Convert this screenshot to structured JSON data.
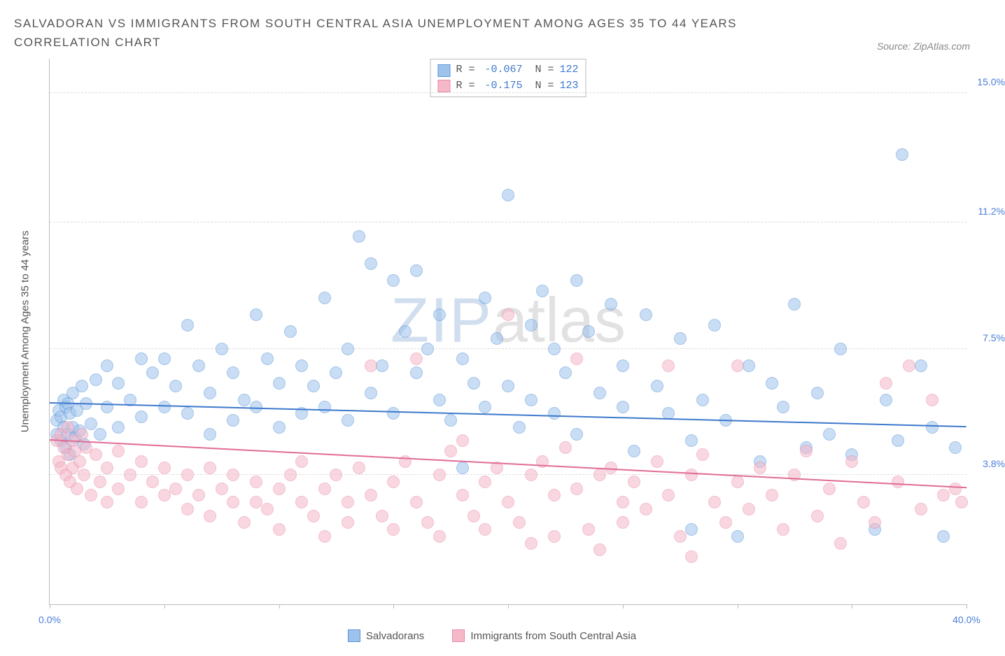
{
  "title": "SALVADORAN VS IMMIGRANTS FROM SOUTH CENTRAL ASIA UNEMPLOYMENT AMONG AGES 35 TO 44 YEARS CORRELATION CHART",
  "source": "Source: ZipAtlas.com",
  "ylabel": "Unemployment Among Ages 35 to 44 years",
  "watermark_zip": "ZIP",
  "watermark_atlas": "atlas",
  "chart": {
    "type": "scatter",
    "xlim": [
      0,
      40
    ],
    "ylim": [
      0,
      16
    ],
    "xtick_positions": [
      0,
      5,
      10,
      15,
      20,
      25,
      30,
      35,
      40
    ],
    "xtick_labels": {
      "0": "0.0%",
      "40": "40.0%"
    },
    "xtick_label_color": "#4a7fd8",
    "ytick_positions": [
      3.8,
      7.5,
      11.2,
      15.0
    ],
    "ytick_labels": [
      "3.8%",
      "7.5%",
      "11.2%",
      "15.0%"
    ],
    "ytick_label_color": "#4a7fd8",
    "grid_color": "#dddddd",
    "background_color": "#ffffff",
    "marker_radius": 9,
    "marker_opacity": 0.55,
    "series": [
      {
        "name": "Salvadorans",
        "color_fill": "#9dc3ed",
        "color_stroke": "#5b94d6",
        "trend_color": "#3d79cc",
        "R": "-0.067",
        "N": "122",
        "trend": {
          "y_at_x0": 5.9,
          "y_at_xmax": 5.2
        },
        "points": [
          [
            0.3,
            5.0
          ],
          [
            0.3,
            5.4
          ],
          [
            0.4,
            5.7
          ],
          [
            0.5,
            4.8
          ],
          [
            0.5,
            5.5
          ],
          [
            0.6,
            5.2
          ],
          [
            0.6,
            6.0
          ],
          [
            0.7,
            4.6
          ],
          [
            0.7,
            5.8
          ],
          [
            0.8,
            5.0
          ],
          [
            0.8,
            5.9
          ],
          [
            0.9,
            4.4
          ],
          [
            0.9,
            5.6
          ],
          [
            1.0,
            5.2
          ],
          [
            1.0,
            6.2
          ],
          [
            1.1,
            4.9
          ],
          [
            1.2,
            5.7
          ],
          [
            1.3,
            5.1
          ],
          [
            1.4,
            6.4
          ],
          [
            1.5,
            4.7
          ],
          [
            1.6,
            5.9
          ],
          [
            1.8,
            5.3
          ],
          [
            2.0,
            6.6
          ],
          [
            2.2,
            5.0
          ],
          [
            2.5,
            5.8
          ],
          [
            2.5,
            7.0
          ],
          [
            3.0,
            6.5
          ],
          [
            3.0,
            5.2
          ],
          [
            3.5,
            6.0
          ],
          [
            4.0,
            7.2
          ],
          [
            4.0,
            5.5
          ],
          [
            4.5,
            6.8
          ],
          [
            5.0,
            7.2
          ],
          [
            5.0,
            5.8
          ],
          [
            5.5,
            6.4
          ],
          [
            6.0,
            8.2
          ],
          [
            6.0,
            5.6
          ],
          [
            6.5,
            7.0
          ],
          [
            7.0,
            6.2
          ],
          [
            7.0,
            5.0
          ],
          [
            7.5,
            7.5
          ],
          [
            8.0,
            6.8
          ],
          [
            8.0,
            5.4
          ],
          [
            8.5,
            6.0
          ],
          [
            9.0,
            8.5
          ],
          [
            9.0,
            5.8
          ],
          [
            9.5,
            7.2
          ],
          [
            10.0,
            6.5
          ],
          [
            10.0,
            5.2
          ],
          [
            10.5,
            8.0
          ],
          [
            11.0,
            7.0
          ],
          [
            11.0,
            5.6
          ],
          [
            11.5,
            6.4
          ],
          [
            12.0,
            9.0
          ],
          [
            12.0,
            5.8
          ],
          [
            12.5,
            6.8
          ],
          [
            13.0,
            7.5
          ],
          [
            13.0,
            5.4
          ],
          [
            13.5,
            10.8
          ],
          [
            14.0,
            6.2
          ],
          [
            14.0,
            10.0
          ],
          [
            14.5,
            7.0
          ],
          [
            15.0,
            9.5
          ],
          [
            15.0,
            5.6
          ],
          [
            15.5,
            8.0
          ],
          [
            16.0,
            6.8
          ],
          [
            16.0,
            9.8
          ],
          [
            16.5,
            7.5
          ],
          [
            17.0,
            6.0
          ],
          [
            17.0,
            8.5
          ],
          [
            17.5,
            5.4
          ],
          [
            18.0,
            7.2
          ],
          [
            18.0,
            4.0
          ],
          [
            18.5,
            6.5
          ],
          [
            19.0,
            9.0
          ],
          [
            19.0,
            5.8
          ],
          [
            19.5,
            7.8
          ],
          [
            20.0,
            12.0
          ],
          [
            20.0,
            6.4
          ],
          [
            20.5,
            5.2
          ],
          [
            21.0,
            8.2
          ],
          [
            21.0,
            6.0
          ],
          [
            21.5,
            9.2
          ],
          [
            22.0,
            5.6
          ],
          [
            22.0,
            7.5
          ],
          [
            22.5,
            6.8
          ],
          [
            23.0,
            9.5
          ],
          [
            23.0,
            5.0
          ],
          [
            23.5,
            8.0
          ],
          [
            24.0,
            6.2
          ],
          [
            24.5,
            8.8
          ],
          [
            25.0,
            5.8
          ],
          [
            25.0,
            7.0
          ],
          [
            25.5,
            4.5
          ],
          [
            26.0,
            8.5
          ],
          [
            26.5,
            6.4
          ],
          [
            27.0,
            5.6
          ],
          [
            27.5,
            7.8
          ],
          [
            28.0,
            4.8
          ],
          [
            28.0,
            2.2
          ],
          [
            28.5,
            6.0
          ],
          [
            29.0,
            8.2
          ],
          [
            29.5,
            5.4
          ],
          [
            30.0,
            2.0
          ],
          [
            30.5,
            7.0
          ],
          [
            31.0,
            4.2
          ],
          [
            31.5,
            6.5
          ],
          [
            32.0,
            5.8
          ],
          [
            32.5,
            8.8
          ],
          [
            33.0,
            4.6
          ],
          [
            33.5,
            6.2
          ],
          [
            34.0,
            5.0
          ],
          [
            34.5,
            7.5
          ],
          [
            35.0,
            4.4
          ],
          [
            36.0,
            2.2
          ],
          [
            36.5,
            6.0
          ],
          [
            37.0,
            4.8
          ],
          [
            37.2,
            13.2
          ],
          [
            38.0,
            7.0
          ],
          [
            38.5,
            5.2
          ],
          [
            39.0,
            2.0
          ],
          [
            39.5,
            4.6
          ]
        ]
      },
      {
        "name": "Immigrants from South Central Asia",
        "color_fill": "#f5b8c8",
        "color_stroke": "#e88ba8",
        "trend_color": "#e06c95",
        "R": "-0.175",
        "N": "123",
        "trend": {
          "y_at_x0": 4.8,
          "y_at_xmax": 3.4
        },
        "points": [
          [
            0.3,
            4.8
          ],
          [
            0.4,
            4.2
          ],
          [
            0.5,
            5.0
          ],
          [
            0.5,
            4.0
          ],
          [
            0.6,
            4.6
          ],
          [
            0.7,
            3.8
          ],
          [
            0.8,
            4.4
          ],
          [
            0.8,
            5.2
          ],
          [
            0.9,
            3.6
          ],
          [
            1.0,
            4.8
          ],
          [
            1.0,
            4.0
          ],
          [
            1.1,
            4.5
          ],
          [
            1.2,
            3.4
          ],
          [
            1.3,
            4.2
          ],
          [
            1.4,
            5.0
          ],
          [
            1.5,
            3.8
          ],
          [
            1.6,
            4.6
          ],
          [
            1.8,
            3.2
          ],
          [
            2.0,
            4.4
          ],
          [
            2.2,
            3.6
          ],
          [
            2.5,
            4.0
          ],
          [
            2.5,
            3.0
          ],
          [
            3.0,
            4.5
          ],
          [
            3.0,
            3.4
          ],
          [
            3.5,
            3.8
          ],
          [
            4.0,
            3.0
          ],
          [
            4.0,
            4.2
          ],
          [
            4.5,
            3.6
          ],
          [
            5.0,
            3.2
          ],
          [
            5.0,
            4.0
          ],
          [
            5.5,
            3.4
          ],
          [
            6.0,
            2.8
          ],
          [
            6.0,
            3.8
          ],
          [
            6.5,
            3.2
          ],
          [
            7.0,
            2.6
          ],
          [
            7.0,
            4.0
          ],
          [
            7.5,
            3.4
          ],
          [
            8.0,
            3.0
          ],
          [
            8.0,
            3.8
          ],
          [
            8.5,
            2.4
          ],
          [
            9.0,
            3.6
          ],
          [
            9.0,
            3.0
          ],
          [
            9.5,
            2.8
          ],
          [
            10.0,
            3.4
          ],
          [
            10.0,
            2.2
          ],
          [
            10.5,
            3.8
          ],
          [
            11.0,
            3.0
          ],
          [
            11.0,
            4.2
          ],
          [
            11.5,
            2.6
          ],
          [
            12.0,
            3.4
          ],
          [
            12.0,
            2.0
          ],
          [
            12.5,
            3.8
          ],
          [
            13.0,
            3.0
          ],
          [
            13.0,
            2.4
          ],
          [
            13.5,
            4.0
          ],
          [
            14.0,
            3.2
          ],
          [
            14.0,
            7.0
          ],
          [
            14.5,
            2.6
          ],
          [
            15.0,
            3.6
          ],
          [
            15.0,
            2.2
          ],
          [
            15.5,
            4.2
          ],
          [
            16.0,
            3.0
          ],
          [
            16.0,
            7.2
          ],
          [
            16.5,
            2.4
          ],
          [
            17.0,
            3.8
          ],
          [
            17.0,
            2.0
          ],
          [
            17.5,
            4.5
          ],
          [
            18.0,
            3.2
          ],
          [
            18.0,
            4.8
          ],
          [
            18.5,
            2.6
          ],
          [
            19.0,
            3.6
          ],
          [
            19.0,
            2.2
          ],
          [
            19.5,
            4.0
          ],
          [
            20.0,
            3.0
          ],
          [
            20.0,
            8.5
          ],
          [
            20.5,
            2.4
          ],
          [
            21.0,
            3.8
          ],
          [
            21.0,
            1.8
          ],
          [
            21.5,
            4.2
          ],
          [
            22.0,
            3.2
          ],
          [
            22.0,
            2.0
          ],
          [
            22.5,
            4.6
          ],
          [
            23.0,
            3.4
          ],
          [
            23.0,
            7.2
          ],
          [
            23.5,
            2.2
          ],
          [
            24.0,
            3.8
          ],
          [
            24.0,
            1.6
          ],
          [
            24.5,
            4.0
          ],
          [
            25.0,
            3.0
          ],
          [
            25.0,
            2.4
          ],
          [
            25.5,
            3.6
          ],
          [
            26.0,
            2.8
          ],
          [
            26.5,
            4.2
          ],
          [
            27.0,
            3.2
          ],
          [
            27.0,
            7.0
          ],
          [
            27.5,
            2.0
          ],
          [
            28.0,
            3.8
          ],
          [
            28.0,
            1.4
          ],
          [
            28.5,
            4.4
          ],
          [
            29.0,
            3.0
          ],
          [
            29.5,
            2.4
          ],
          [
            30.0,
            3.6
          ],
          [
            30.0,
            7.0
          ],
          [
            30.5,
            2.8
          ],
          [
            31.0,
            4.0
          ],
          [
            31.5,
            3.2
          ],
          [
            32.0,
            2.2
          ],
          [
            32.5,
            3.8
          ],
          [
            33.0,
            4.5
          ],
          [
            33.5,
            2.6
          ],
          [
            34.0,
            3.4
          ],
          [
            34.5,
            1.8
          ],
          [
            35.0,
            4.2
          ],
          [
            35.5,
            3.0
          ],
          [
            36.0,
            2.4
          ],
          [
            36.5,
            6.5
          ],
          [
            37.0,
            3.6
          ],
          [
            37.5,
            7.0
          ],
          [
            38.0,
            2.8
          ],
          [
            38.5,
            6.0
          ],
          [
            39.0,
            3.2
          ],
          [
            39.5,
            3.4
          ],
          [
            39.8,
            3.0
          ]
        ]
      }
    ]
  },
  "stats_box": {
    "label_R": "R =",
    "label_N": "N ="
  },
  "legend": {
    "salvadorans": "Salvadorans",
    "immigrants": "Immigrants from South Central Asia"
  }
}
